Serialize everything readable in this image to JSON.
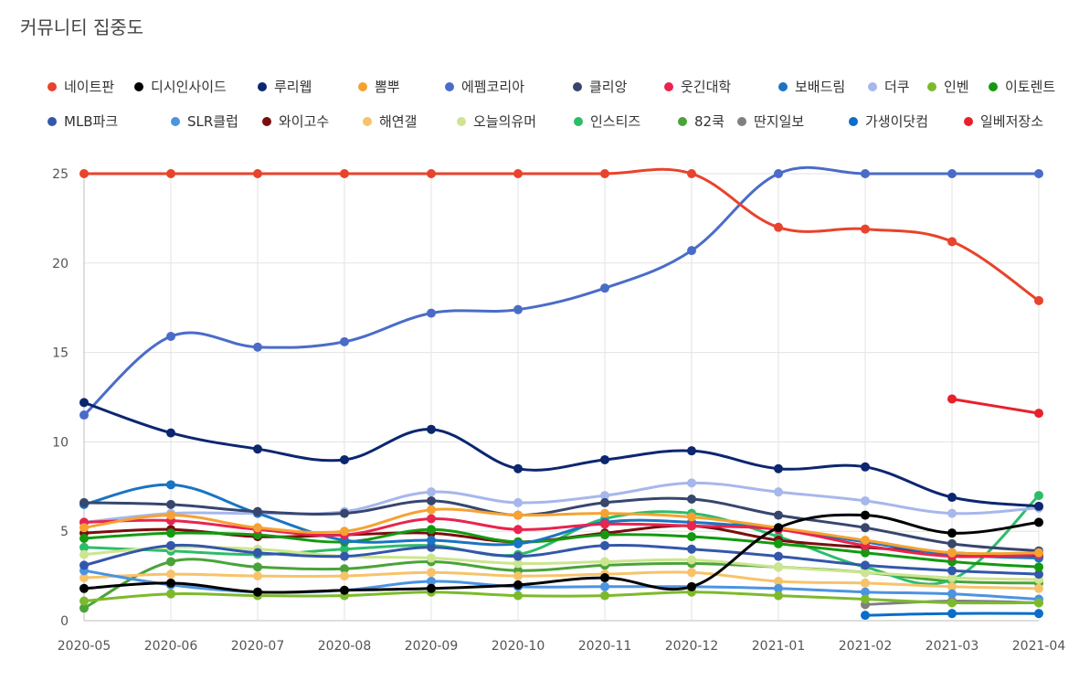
{
  "title": "커뮤니티 집중도",
  "chart_data": {
    "type": "line",
    "title": "커뮤니티 집중도",
    "xlabel": "",
    "ylabel": "",
    "ylim": [
      0,
      25
    ],
    "yticks": [
      0,
      5,
      10,
      15,
      20,
      25
    ],
    "grid": true,
    "legend_position": "top",
    "categories": [
      "2020-05",
      "2020-06",
      "2020-07",
      "2020-08",
      "2020-09",
      "2020-10",
      "2020-11",
      "2020-12",
      "2021-01",
      "2021-02",
      "2021-03",
      "2021-04"
    ],
    "series": [
      {
        "name": "네이트판",
        "color": "#e8432c",
        "values": [
          25,
          25,
          25,
          25,
          25,
          25,
          25,
          25,
          22,
          21.9,
          21.2,
          17.9
        ]
      },
      {
        "name": "디시인사이드",
        "color": "#000000",
        "values": [
          1.8,
          2.1,
          1.6,
          1.7,
          1.8,
          2.0,
          2.4,
          1.9,
          5.2,
          5.9,
          4.9,
          5.5
        ]
      },
      {
        "name": "루리웹",
        "color": "#0c2670",
        "values": [
          12.2,
          10.5,
          9.6,
          9.0,
          10.7,
          8.5,
          9.0,
          9.5,
          8.5,
          8.6,
          6.9,
          6.4
        ]
      },
      {
        "name": "뽐뿌",
        "color": "#f5a232",
        "values": [
          5.2,
          5.9,
          5.2,
          5.0,
          6.2,
          5.9,
          6.0,
          5.8,
          5.2,
          4.5,
          3.8,
          3.8
        ]
      },
      {
        "name": "에펨코리아",
        "color": "#4a6cc8",
        "values": [
          11.5,
          15.9,
          15.3,
          15.6,
          17.2,
          17.4,
          18.6,
          20.7,
          25,
          25,
          25,
          25
        ]
      },
      {
        "name": "클리앙",
        "color": "#37466e",
        "values": [
          6.6,
          6.5,
          6.1,
          6.0,
          6.7,
          5.9,
          6.6,
          6.8,
          5.9,
          5.2,
          4.3,
          3.9
        ]
      },
      {
        "name": "웃긴대학",
        "color": "#e8244f",
        "values": [
          5.5,
          5.6,
          5.1,
          4.8,
          5.7,
          5.1,
          5.4,
          5.3,
          5.1,
          4.2,
          3.6,
          3.7
        ]
      },
      {
        "name": "보배드림",
        "color": "#1a74c2",
        "values": [
          6.5,
          7.6,
          6.0,
          4.5,
          4.5,
          4.3,
          5.5,
          5.5,
          5.1,
          4.4,
          3.7,
          3.5
        ]
      },
      {
        "name": "더쿠",
        "color": "#a7b7ec",
        "values": [
          5.5,
          6.0,
          6.0,
          6.1,
          7.2,
          6.6,
          7.0,
          7.7,
          7.2,
          6.7,
          6.0,
          6.3
        ]
      },
      {
        "name": "인벤",
        "color": "#7cba2c",
        "values": [
          1.1,
          1.5,
          1.4,
          1.4,
          1.6,
          1.4,
          1.4,
          1.6,
          1.4,
          1.2,
          1.0,
          1.0
        ]
      },
      {
        "name": "이토렌트",
        "color": "#139a10",
        "values": [
          4.6,
          4.9,
          4.8,
          4.4,
          5.1,
          4.4,
          4.8,
          4.7,
          4.3,
          3.8,
          3.3,
          3.0
        ]
      },
      {
        "name": "MLB파크",
        "color": "#3357aa",
        "values": [
          3.1,
          4.2,
          3.8,
          3.6,
          4.1,
          3.6,
          4.2,
          4.0,
          3.6,
          3.1,
          2.8,
          2.6
        ]
      },
      {
        "name": "SLR클럽",
        "color": "#4c93e2",
        "values": [
          2.8,
          2.0,
          1.6,
          1.7,
          2.2,
          1.9,
          1.9,
          1.9,
          1.8,
          1.6,
          1.5,
          1.2
        ]
      },
      {
        "name": "와이고수",
        "color": "#7a0e0e",
        "values": [
          4.9,
          5.1,
          4.7,
          4.8,
          4.9,
          4.4,
          4.9,
          5.3,
          4.5,
          4.1,
          3.8,
          3.6
        ]
      },
      {
        "name": "해연갤",
        "color": "#f7c36a",
        "values": [
          2.4,
          2.6,
          2.5,
          2.5,
          2.7,
          2.5,
          2.6,
          2.7,
          2.2,
          2.1,
          1.9,
          1.8
        ]
      },
      {
        "name": "오늘의유머",
        "color": "#cde58f",
        "values": [
          3.7,
          4.1,
          4.0,
          3.6,
          3.5,
          3.2,
          3.3,
          3.4,
          3.0,
          2.7,
          2.4,
          2.3
        ]
      },
      {
        "name": "인스티즈",
        "color": "#2dbd6a",
        "values": [
          4.1,
          3.9,
          3.7,
          4.0,
          4.2,
          3.7,
          5.7,
          6.0,
          4.7,
          3.0,
          2.3,
          7.0
        ]
      },
      {
        "name": "82쿡",
        "color": "#4aa33a",
        "values": [
          0.7,
          3.3,
          3.0,
          2.9,
          3.3,
          2.8,
          3.1,
          3.2,
          3.0,
          2.7,
          2.2,
          2.1
        ]
      },
      {
        "name": "딴지일보",
        "color": "#808080",
        "values": [
          null,
          null,
          null,
          null,
          null,
          null,
          null,
          null,
          null,
          0.9,
          1.1,
          1.0
        ]
      },
      {
        "name": "가생이닷컴",
        "color": "#0a6dc8",
        "values": [
          null,
          null,
          null,
          null,
          null,
          null,
          null,
          null,
          null,
          0.3,
          0.4,
          0.4
        ]
      },
      {
        "name": "일베저장소",
        "color": "#e8202a",
        "values": [
          null,
          null,
          null,
          null,
          null,
          null,
          null,
          null,
          null,
          null,
          12.4,
          11.6
        ]
      }
    ]
  }
}
